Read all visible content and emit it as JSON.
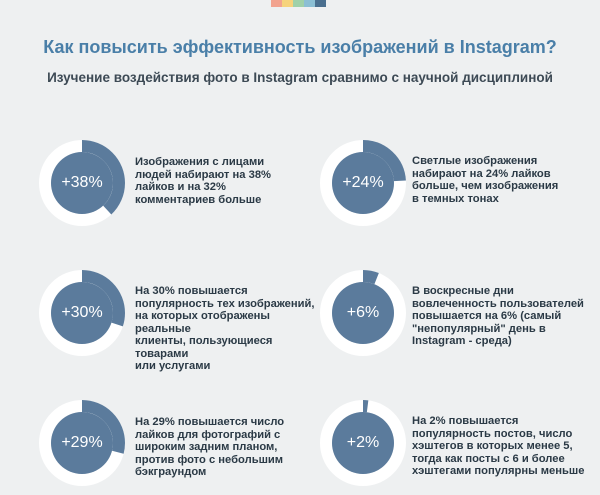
{
  "header": {
    "color_strip": [
      "#f2a38f",
      "#f6d37c",
      "#9fd1a9",
      "#8bbfd4",
      "#4a6f8f"
    ],
    "title": "Как повысить эффективность изображений в Instagram?",
    "subtitle": "Изучение воздействия фото в Instagram сравнимо с научной дисциплиной"
  },
  "colors": {
    "ring_fill": "#5b7b9c",
    "ring_track": "#ffffff",
    "ring_arc": "#5b7b9c"
  },
  "stats": [
    {
      "value": "+38%",
      "fraction": 0.38,
      "text": "Изображения с лицами\nлюдей набирают на 38%\nлайков и на 32%\nкомментариев больше"
    },
    {
      "value": "+24%",
      "fraction": 0.24,
      "text": "Светлые изображения\nнабирают на 24% лайков\nбольше, чем изображения\nв темных тонах"
    },
    {
      "value": "+30%",
      "fraction": 0.3,
      "text": "На 30% повышается\nпопулярность тех изображений,\nна которых отображены реальные\nклиенты, пользующиеся товарами\nили услугами"
    },
    {
      "value": "+6%",
      "fraction": 0.06,
      "text": "В воскресные дни\nвовлеченность пользователей\nповышается на 6% (самый\n\"непопулярный\" день в\nInstagram - среда)"
    },
    {
      "value": "+29%",
      "fraction": 0.29,
      "text": "На 29% повышается число\nлайков для фотографий с\nшироким задним планом,\nпротив фото с небольшим\nбэкграундом"
    },
    {
      "value": "+2%",
      "fraction": 0.02,
      "text": "На 2% повышается\nпопулярность постов, число\nхэштегов в которых менее 5,\nтогда как посты с 6 и более\nхэштегами популярны меньше"
    }
  ]
}
